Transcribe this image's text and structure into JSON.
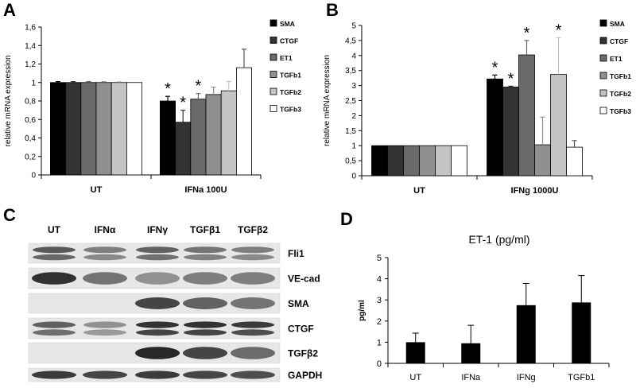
{
  "panels": {
    "a": {
      "label": "A"
    },
    "b": {
      "label": "B"
    },
    "c": {
      "label": "C"
    },
    "d": {
      "label": "D"
    }
  },
  "chart_data": [
    {
      "id": "A",
      "type": "bar",
      "ylabel": "relative mRNA expression",
      "ylim": [
        0,
        1.6
      ],
      "yticks": [
        "0",
        "0,2",
        "0,4",
        "0,6",
        "0,8",
        "1",
        "1,2",
        "1,4",
        "1,6"
      ],
      "categories": [
        "UT",
        "IFNa 100U"
      ],
      "legend_position": "right",
      "series": [
        {
          "name": "SMA",
          "color": "#000000",
          "values": [
            1.0,
            0.8
          ],
          "errors": [
            0.01,
            0.05
          ],
          "significant": [
            false,
            true
          ]
        },
        {
          "name": "CTGF",
          "color": "#333333",
          "values": [
            1.0,
            0.57
          ],
          "errors": [
            0.01,
            0.13
          ],
          "significant": [
            false,
            true
          ]
        },
        {
          "name": "ET1",
          "color": "#6a6a6a",
          "values": [
            1.0,
            0.82
          ],
          "errors": [
            0.01,
            0.06
          ],
          "significant": [
            false,
            true
          ]
        },
        {
          "name": "TGFb1",
          "color": "#909090",
          "values": [
            1.0,
            0.87
          ],
          "errors": [
            0.01,
            0.08
          ],
          "significant": [
            false,
            false
          ]
        },
        {
          "name": "TGFb2",
          "color": "#c4c4c4",
          "values": [
            1.0,
            0.91
          ],
          "errors": [
            0.01,
            0.1
          ],
          "significant": [
            false,
            false
          ]
        },
        {
          "name": "TGFb3",
          "color": "#ffffff",
          "values": [
            1.0,
            1.16
          ],
          "errors": [
            0.0,
            0.2
          ],
          "significant": [
            false,
            false
          ]
        }
      ]
    },
    {
      "id": "B",
      "type": "bar",
      "ylabel": "relative mRNA expression",
      "ylim": [
        0,
        5
      ],
      "yticks": [
        "0",
        "0,5",
        "1",
        "1,5",
        "2",
        "2,5",
        "3",
        "3,5",
        "4",
        "4,5",
        "5"
      ],
      "categories": [
        "UT",
        "IFNg 1000U"
      ],
      "legend_position": "right",
      "series": [
        {
          "name": "SMA",
          "color": "#000000",
          "values": [
            1.0,
            3.22
          ],
          "errors": [
            0.0,
            0.13
          ],
          "significant": [
            false,
            true
          ]
        },
        {
          "name": "CTGF",
          "color": "#333333",
          "values": [
            1.0,
            2.95
          ],
          "errors": [
            0.0,
            0.03
          ],
          "significant": [
            false,
            true
          ]
        },
        {
          "name": "ET1",
          "color": "#6a6a6a",
          "values": [
            1.0,
            4.02
          ],
          "errors": [
            0.0,
            0.48
          ],
          "significant": [
            false,
            true
          ]
        },
        {
          "name": "TGFb1",
          "color": "#909090",
          "values": [
            1.0,
            1.03
          ],
          "errors": [
            0.0,
            0.92
          ],
          "significant": [
            false,
            false
          ]
        },
        {
          "name": "TGFb2",
          "color": "#c4c4c4",
          "values": [
            1.0,
            3.37
          ],
          "errors": [
            0.0,
            1.22
          ],
          "significant": [
            false,
            true
          ]
        },
        {
          "name": "TGFb3",
          "color": "#ffffff",
          "values": [
            1.0,
            0.95
          ],
          "errors": [
            0.0,
            0.22
          ],
          "significant": [
            false,
            false
          ]
        }
      ]
    },
    {
      "id": "D",
      "type": "bar",
      "title": "ET-1 (pg/ml)",
      "ylabel": "pg/ml",
      "ylim": [
        0,
        5
      ],
      "yticks": [
        "0",
        "1",
        "2",
        "3",
        "4",
        "5"
      ],
      "categories": [
        "UT",
        "IFNa",
        "IFNg",
        "TGFb1"
      ],
      "values": [
        1.0,
        0.95,
        2.75,
        2.88
      ],
      "errors": [
        0.43,
        0.85,
        1.03,
        1.27
      ],
      "color": "#000000"
    }
  ],
  "blot": {
    "lanes": [
      "UT",
      "IFNα",
      "IFNγ",
      "TGFβ1",
      "TGFβ2"
    ],
    "rows": [
      {
        "name": "Fli1",
        "intensity": [
          0.75,
          0.55,
          0.7,
          0.6,
          0.55
        ],
        "bands": 2
      },
      {
        "name": "VE-cad",
        "intensity": [
          0.95,
          0.6,
          0.45,
          0.55,
          0.55
        ],
        "bands": 1
      },
      {
        "name": "SMA",
        "intensity": [
          0.0,
          0.0,
          0.85,
          0.7,
          0.6
        ],
        "bands": 1
      },
      {
        "name": "CTGF",
        "intensity": [
          0.7,
          0.45,
          0.95,
          0.95,
          0.9
        ],
        "bands": 2
      },
      {
        "name": "TGFβ2",
        "intensity": [
          0.0,
          0.0,
          1.0,
          0.85,
          0.65
        ],
        "bands": 1
      },
      {
        "name": "GAPDH",
        "intensity": [
          0.9,
          0.85,
          0.9,
          0.85,
          0.8
        ],
        "bands": 1
      }
    ]
  }
}
